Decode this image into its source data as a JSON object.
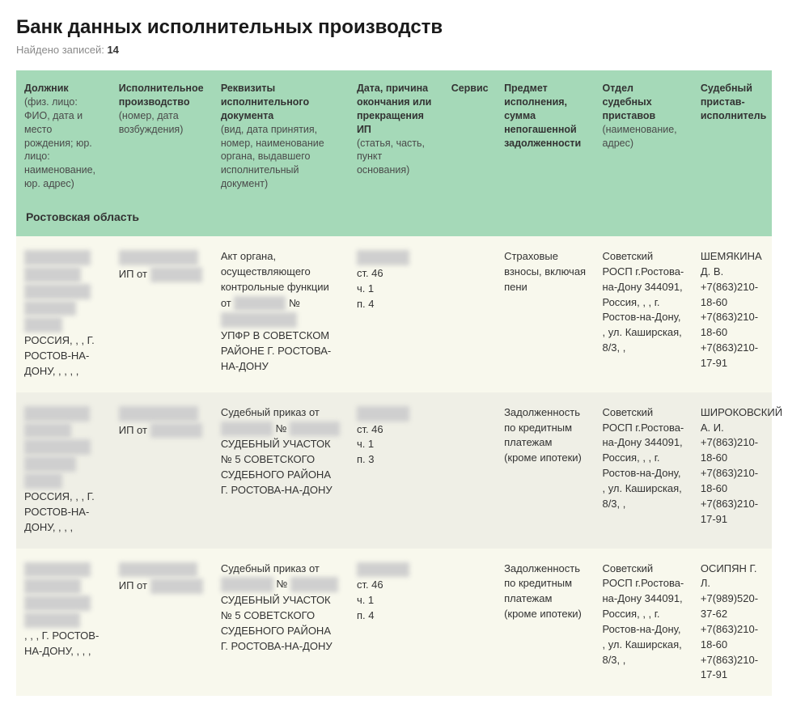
{
  "page": {
    "title": "Банк данных исполнительных производств",
    "found_label": "Найдено записей:",
    "found_count": "14"
  },
  "table": {
    "headers": {
      "debtor_main": "Должник",
      "debtor_sub": "(физ. лицо: ФИО, дата и место рождения; юр. лицо: наименование, юр. адрес)",
      "proc_main": "Исполнительное производство",
      "proc_sub": "(номер, дата возбуждения)",
      "doc_main": "Реквизиты исполнительного документа",
      "doc_sub": "(вид, дата принятия, номер, наименование органа, выдавшего исполнительный документ)",
      "end_main": "Дата, причина окончания или прекращения ИП",
      "end_sub": "(статья, часть, пункт основания)",
      "service_main": "Сервис",
      "subject_main": "Предмет исполнения, сумма непогашенной задолженности",
      "dept_main": "Отдел судебных приставов",
      "dept_sub": "(наименование, адрес)",
      "bailiff_main": "Судебный пристав-исполнитель"
    },
    "region": "Ростовская область",
    "rows": [
      {
        "debtor_masked1": "ПИРНАБЯНЦ",
        "debtor_masked2": "АНДРАНИК",
        "debtor_masked3": "АРШАКОВИЧ",
        "debtor_masked4": "11.06.1981",
        "debtor_masked5": "344000,",
        "debtor_country": "РОССИЯ, , , Г. РОСТОВ-НА-ДОНУ, , , , ,",
        "proc_masked": "50849/21/61082-",
        "proc_text": "ИП от",
        "proc_date_masked": "02.11.2021",
        "doc_text1": "Акт органа, осуществляющего контрольные функции от",
        "doc_masked1": "11.08.2021",
        "doc_text2": "№",
        "doc_masked2": "6180210021804",
        "doc_text3": "УПФР В СОВЕТСКОМ РАЙОНЕ Г. РОСТОВА-НА-ДОНУ",
        "end_masked": "30.06.2016",
        "end_art": "ст. 46",
        "end_part": "ч. 1",
        "end_pt": "п. 4",
        "subject": "Страховые взносы, включая пени",
        "dept": "Советский РОСП г.Ростова-на-Дону 344091, Россия, , , г. Ростов-на-Дону, , ул. Каширская, 8/3, ,",
        "bailiff_name": "ШЕМЯКИНА Д. В.",
        "bailiff_phone1": "+7(863)210-18-60",
        "bailiff_phone2": "+7(863)210-18-60",
        "bailiff_phone3": "+7(863)210-17-91"
      },
      {
        "debtor_masked1": "ПИТНАБЯНЦ",
        "debtor_masked2": "Андраник",
        "debtor_masked3": "АРШАКОВИЧ",
        "debtor_masked4": "11.06.1981",
        "debtor_masked5": "344001,",
        "debtor_country": "РОССИЯ, , , Г. РОСТОВ-НА-ДОНУ, , , ,",
        "proc_masked": "76691/19/61082-",
        "proc_text": "ИП от",
        "proc_date_masked": "03.11.2019",
        "doc_text1": "Судебный приказ от",
        "doc_masked1": "11.05.2015",
        "doc_text2": "№",
        "doc_masked2": "1326/2015",
        "doc_text3": "СУДЕБНЫЙ УЧАСТОК № 5 СОВЕТСКОГО СУДЕБНОГО РАЙОНА Г. РОСТОВА-НА-ДОНУ",
        "end_masked": "05.10.2016",
        "end_art": "ст. 46",
        "end_part": "ч. 1",
        "end_pt": "п. 3",
        "subject": "Задолженность по кредитным платежам (кроме ипотеки)",
        "dept": "Советский РОСП г.Ростова-на-Дону 344091, Россия, , , г. Ростов-на-Дону, , ул. Каширская, 8/3, ,",
        "bailiff_name": "ШИРОКОВСКИЙ А. И.",
        "bailiff_phone1": "+7(863)210-18-60",
        "bailiff_phone2": "+7(863)210-18-60",
        "bailiff_phone3": "+7(863)210-17-91"
      },
      {
        "debtor_masked1": "ПИРНАБЯНЦ",
        "debtor_masked2": "АНДРАНИК",
        "debtor_masked3": "АРШАКОВИЧ",
        "debtor_masked4": "СЕ.06.1981",
        "debtor_masked5": "",
        "debtor_country": ", , , Г. РОСТОВ-НА-ДОНУ, , , ,",
        "proc_masked": "АА 58/18/61082-",
        "proc_text": "ИП от",
        "proc_date_masked": "16.10.2018",
        "doc_text1": "Судебный приказ от",
        "doc_masked1": "26.12.2016",
        "doc_text2": "№",
        "doc_masked2": "5-1460/16",
        "doc_text3": "СУДЕБНЫЙ УЧАСТОК № 5 СОВЕТСКОГО СУДЕБНОГО РАЙОНА Г. РОСТОВА-НА-ДОНУ",
        "end_masked": "16.01.2017",
        "end_art": "ст. 46",
        "end_part": "ч. 1",
        "end_pt": "п. 4",
        "subject": "Задолженность по кредитным платежам (кроме ипотеки)",
        "dept": "Советский РОСП г.Ростова-на-Дону 344091, Россия, , , г. Ростов-на-Дону, , ул. Каширская, 8/3, ,",
        "bailiff_name": "ОСИПЯН Г. Л.",
        "bailiff_phone1": "+7(989)520-37-62",
        "bailiff_phone2": "+7(863)210-18-60",
        "bailiff_phone3": "+7(863)210-17-91"
      }
    ]
  },
  "colors": {
    "header_bg": "#a5d9b8",
    "row_odd_bg": "#efefe6",
    "row_even_bg": "#f8f8ed",
    "text": "#333333",
    "muted": "#8a8a8a"
  }
}
